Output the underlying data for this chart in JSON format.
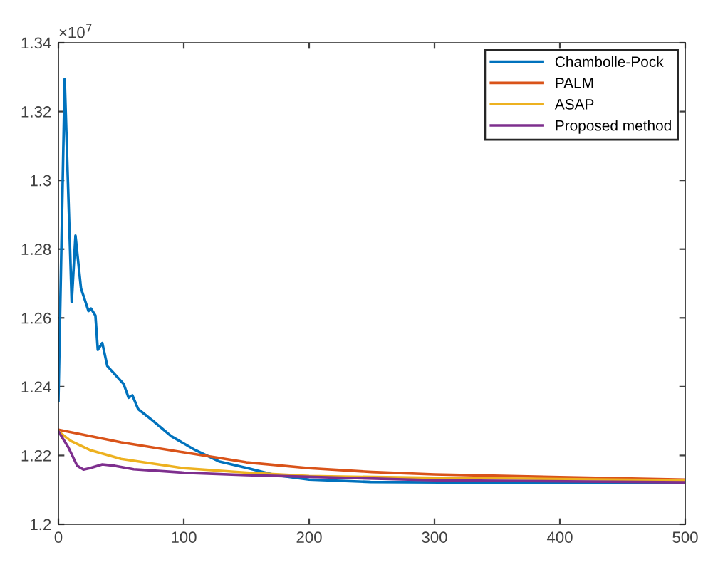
{
  "chart_data": {
    "type": "line",
    "annotations": [
      "×10$^{7}$"
    ],
    "legend": "top right",
    "grid": false,
    "marker": "none",
    "line_style": "solid",
    "xlim": [
      0,
      500
    ],
    "xticks": [
      0,
      100,
      200,
      300,
      400,
      500
    ],
    "ylim": [
      1.2,
      1.34
    ],
    "yticks": [
      1.2,
      1.22,
      1.24,
      1.26,
      1.28,
      1.3,
      1.32,
      1.34
    ],
    "series": [
      {
        "name": "Chambolle-Pock",
        "color": "#0072bd",
        "x": [
          0,
          5,
          10.6,
          13.6,
          18,
          24,
          26,
          29.5,
          31.4,
          35,
          39,
          52,
          56,
          59,
          63.6,
          75,
          90,
          109,
          128,
          151,
          173,
          200,
          249,
          305,
          400,
          500
        ],
        "values": [
          1.236,
          1.3295,
          1.2646,
          1.2839,
          1.2686,
          1.262,
          1.2627,
          1.2607,
          1.2507,
          1.2527,
          1.246,
          1.2408,
          1.2368,
          1.2375,
          1.2335,
          1.2302,
          1.2256,
          1.2216,
          1.2183,
          1.2163,
          1.2143,
          1.213,
          1.2123,
          1.2122,
          1.2121,
          1.2121
        ]
      },
      {
        "name": "PALM",
        "color": "#d95319",
        "x": [
          0,
          50,
          100,
          150,
          200,
          250,
          300,
          400,
          500
        ],
        "values": [
          1.2275,
          1.2238,
          1.2209,
          1.218,
          1.2163,
          1.2152,
          1.2145,
          1.2137,
          1.213
        ]
      },
      {
        "name": "ASAP",
        "color": "#edb120",
        "x": [
          0,
          10,
          25,
          50,
          100,
          150,
          200,
          300,
          500
        ],
        "values": [
          1.227,
          1.2242,
          1.2216,
          1.219,
          1.2163,
          1.215,
          1.214,
          1.2135,
          1.2128
        ]
      },
      {
        "name": "Proposed method",
        "color": "#7e2f8e",
        "x": [
          0,
          8,
          15,
          20,
          25,
          35,
          45,
          60,
          100,
          150,
          200,
          300,
          500
        ],
        "values": [
          1.227,
          1.2223,
          1.217,
          1.2159,
          1.2163,
          1.2174,
          1.217,
          1.216,
          1.215,
          1.2143,
          1.2138,
          1.2128,
          1.2122
        ]
      }
    ]
  }
}
